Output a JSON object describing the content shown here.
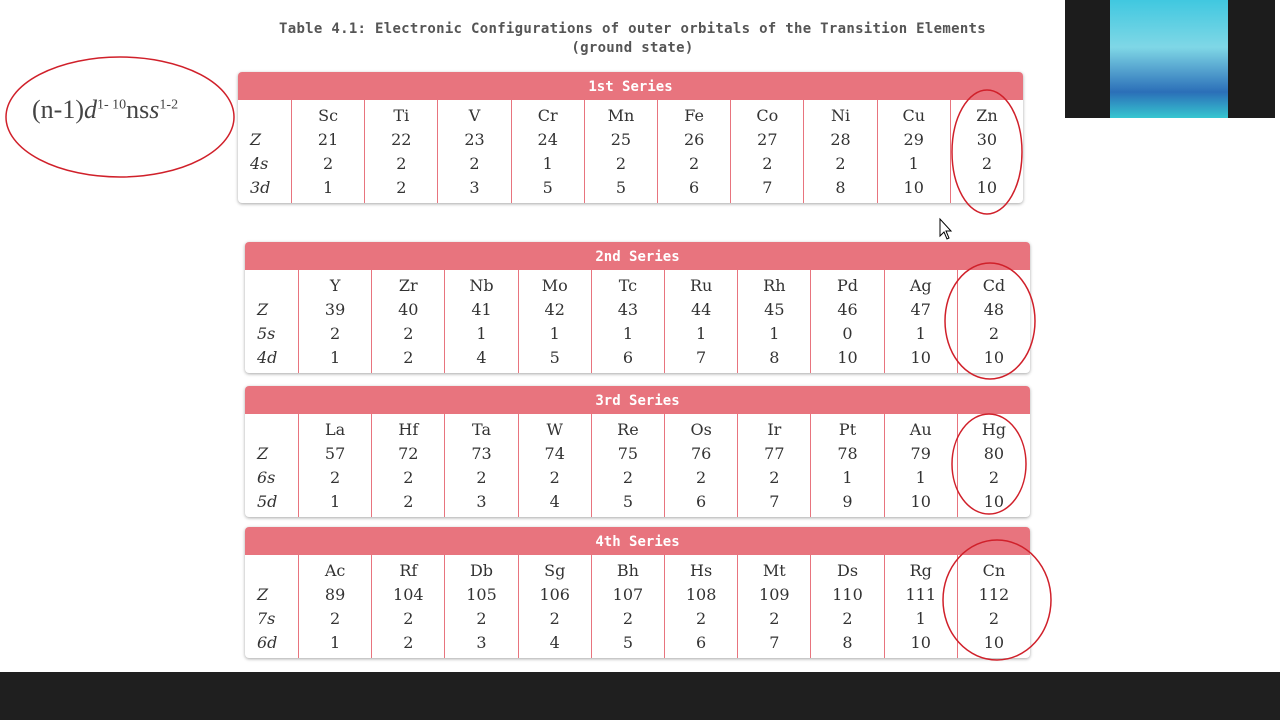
{
  "title_line1": "Table 4.1: Electronic Configurations of outer orbitals of the Transition Elements",
  "title_line2": "(ground state)",
  "left_fragment": {
    "base1": "(n-1)",
    "d": "d",
    "sup1": "1- 10",
    "base2": "ns",
    "sup2": "1-2"
  },
  "accent_color": "#e8747e",
  "annotation_color": "#d0202a",
  "series": [
    {
      "name": "1st Series",
      "labels": [
        "Z",
        "4s",
        "3d"
      ],
      "elements": [
        "Sc",
        "Ti",
        "V",
        "Cr",
        "Mn",
        "Fe",
        "Co",
        "Ni",
        "Cu",
        "Zn"
      ],
      "z": [
        "21",
        "22",
        "23",
        "24",
        "25",
        "26",
        "27",
        "28",
        "29",
        "30"
      ],
      "s": [
        "2",
        "2",
        "2",
        "1",
        "2",
        "2",
        "2",
        "2",
        "1",
        "2"
      ],
      "d": [
        "1",
        "2",
        "3",
        "5",
        "5",
        "6",
        "7",
        "8",
        "10",
        "10"
      ]
    },
    {
      "name": "2nd Series",
      "labels": [
        "Z",
        "5s",
        "4d"
      ],
      "elements": [
        "Y",
        "Zr",
        "Nb",
        "Mo",
        "Tc",
        "Ru",
        "Rh",
        "Pd",
        "Ag",
        "Cd"
      ],
      "z": [
        "39",
        "40",
        "41",
        "42",
        "43",
        "44",
        "45",
        "46",
        "47",
        "48"
      ],
      "s": [
        "2",
        "2",
        "1",
        "1",
        "1",
        "1",
        "1",
        "0",
        "1",
        "2"
      ],
      "d": [
        "1",
        "2",
        "4",
        "5",
        "6",
        "7",
        "8",
        "10",
        "10",
        "10"
      ]
    },
    {
      "name": "3rd Series",
      "labels": [
        "Z",
        "6s",
        "5d"
      ],
      "elements": [
        "La",
        "Hf",
        "Ta",
        "W",
        "Re",
        "Os",
        "Ir",
        "Pt",
        "Au",
        "Hg"
      ],
      "z": [
        "57",
        "72",
        "73",
        "74",
        "75",
        "76",
        "77",
        "78",
        "79",
        "80"
      ],
      "s": [
        "2",
        "2",
        "2",
        "2",
        "2",
        "2",
        "2",
        "1",
        "1",
        "2"
      ],
      "d": [
        "1",
        "2",
        "3",
        "4",
        "5",
        "6",
        "7",
        "9",
        "10",
        "10"
      ]
    },
    {
      "name": "4th Series",
      "labels": [
        "Z",
        "7s",
        "6d"
      ],
      "elements": [
        "Ac",
        "Rf",
        "Db",
        "Sg",
        "Bh",
        "Hs",
        "Mt",
        "Ds",
        "Rg",
        "Cn"
      ],
      "z": [
        "89",
        "104",
        "105",
        "106",
        "107",
        "108",
        "109",
        "110",
        "111",
        "112"
      ],
      "s": [
        "2",
        "2",
        "2",
        "2",
        "2",
        "2",
        "2",
        "2",
        "1",
        "2"
      ],
      "d": [
        "1",
        "2",
        "3",
        "4",
        "5",
        "6",
        "7",
        "8",
        "10",
        "10"
      ]
    }
  ]
}
